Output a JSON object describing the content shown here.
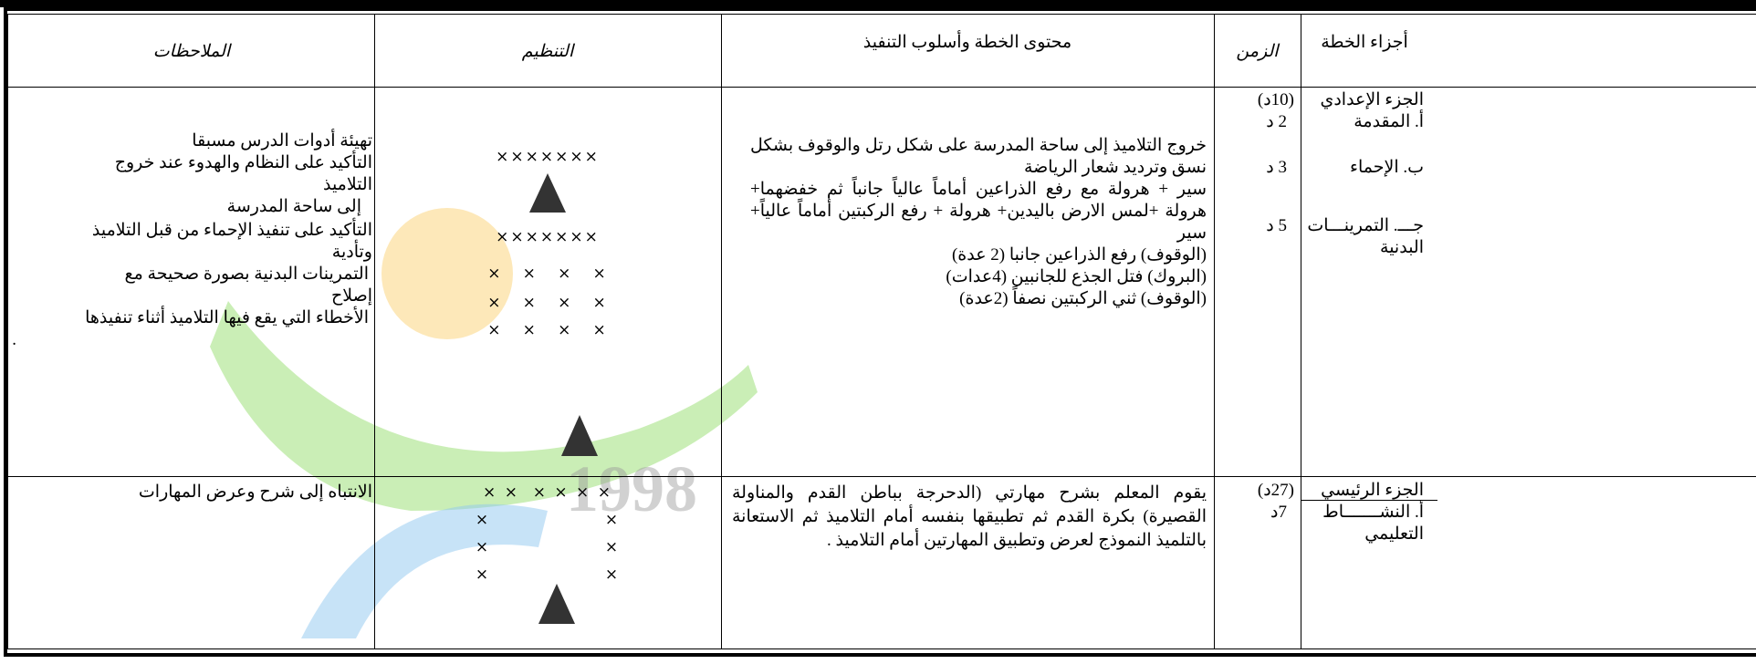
{
  "header": [
    "الملاحظات",
    "التنظيم",
    "محتوى الخطة وأسلوب التنفيذ",
    "الزمن",
    "أجزاء الخطة"
  ],
  "rows": [
    {
      "parts": [
        "الجزء الإعدادي",
        "أ. المقدمة",
        "ب. الإحماء",
        "جـــ. التمرينـــات",
        "البدنية"
      ],
      "time": [
        "(10د)",
        "2 د",
        "3 د",
        "5 د"
      ],
      "content": [
        "خروج التلاميذ إلى ساحة المدرسة على شكل رتل والوقوف بشكل نسق وترديد شعار الرياضة",
        "سير + هرولة مع رفع الذراعين أماماً عالياً جانباً ثم خفضهما+ هرولة +لمس الارض باليدين+ هرولة + رفع الركبتين أماماً عالياً+ سير",
        "(الوقوف) رفع الذراعين جانبا (2 عدة)",
        "(البروك) فتل الجذع للجانبين (4عدات)",
        "(الوقوف) ثني الركبتين نصفاً (2عدة)"
      ],
      "formation": [
        "×××××××",
        "×××××××",
        "×   ×   ×   ×",
        "×   ×   ×   ×",
        "×   ×   ×   ×"
      ],
      "notes": [
        "تهيئة أدوات الدرس مسبقا",
        "التأكيد على النظام والهدوء عند خروج",
        "التلاميذ",
        "إلى ساحة المدرسة",
        "التأكيد على تنفيذ الإحماء من قبل التلاميذ",
        "وتأدية",
        "التمرينات البدنية بصورة صحيحة مع",
        "إصلاح",
        "الأخطاء التي يقع فيها التلاميذ أثناء تنفيذها",
        "."
      ]
    },
    {
      "parts": [
        "الجزء الرئيسي",
        "أ. النشـــــــاط",
        "التعليمي"
      ],
      "time": [
        "(27د)",
        "7د"
      ],
      "content": [
        "يقوم المعلم بشرح مهارتي (الدحرجة بباطن القدم والمناولة القصيرة) بكرة القدم ثم تطبيقها بنفسه أمام التلاميذ ثم الاستعانة بالتلميذ النموذج لعرض وتطبيق المهارتين أمام التلاميذ ."
      ],
      "formation": [
        "× ×  × × × ×",
        "×                 ×",
        "×                 ×",
        "×                 ×"
      ],
      "notes": [
        "الانتباه إلى شرح وعرض المهارات"
      ]
    }
  ],
  "watermark": "1998"
}
